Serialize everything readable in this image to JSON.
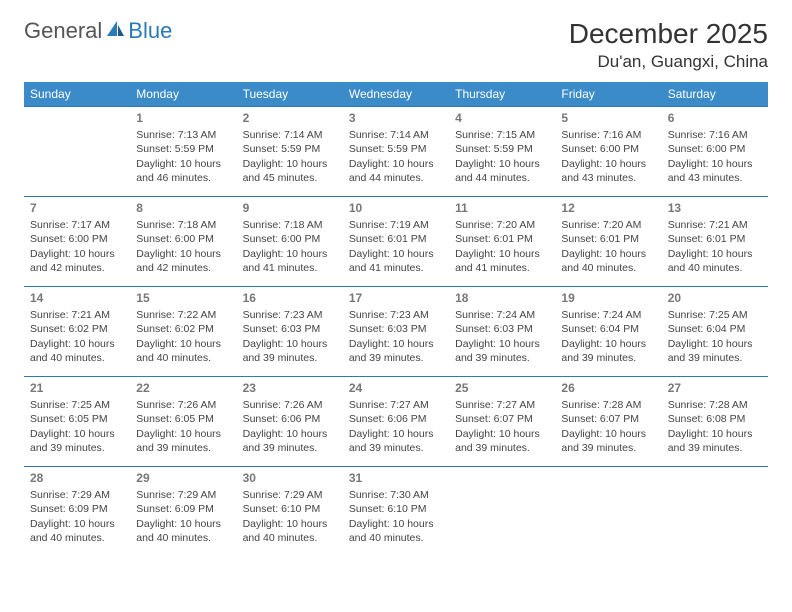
{
  "brand": {
    "part1": "General",
    "part2": "Blue"
  },
  "title": "December 2025",
  "location": "Du'an, Guangxi, China",
  "colors": {
    "header_bg": "#3b8bc9",
    "row_border": "#2a7ab8",
    "text": "#333333",
    "muted": "#777777"
  },
  "weekdays": [
    "Sunday",
    "Monday",
    "Tuesday",
    "Wednesday",
    "Thursday",
    "Friday",
    "Saturday"
  ],
  "weeks": [
    [
      null,
      {
        "n": "1",
        "sr": "Sunrise: 7:13 AM",
        "ss": "Sunset: 5:59 PM",
        "dl1": "Daylight: 10 hours",
        "dl2": "and 46 minutes."
      },
      {
        "n": "2",
        "sr": "Sunrise: 7:14 AM",
        "ss": "Sunset: 5:59 PM",
        "dl1": "Daylight: 10 hours",
        "dl2": "and 45 minutes."
      },
      {
        "n": "3",
        "sr": "Sunrise: 7:14 AM",
        "ss": "Sunset: 5:59 PM",
        "dl1": "Daylight: 10 hours",
        "dl2": "and 44 minutes."
      },
      {
        "n": "4",
        "sr": "Sunrise: 7:15 AM",
        "ss": "Sunset: 5:59 PM",
        "dl1": "Daylight: 10 hours",
        "dl2": "and 44 minutes."
      },
      {
        "n": "5",
        "sr": "Sunrise: 7:16 AM",
        "ss": "Sunset: 6:00 PM",
        "dl1": "Daylight: 10 hours",
        "dl2": "and 43 minutes."
      },
      {
        "n": "6",
        "sr": "Sunrise: 7:16 AM",
        "ss": "Sunset: 6:00 PM",
        "dl1": "Daylight: 10 hours",
        "dl2": "and 43 minutes."
      }
    ],
    [
      {
        "n": "7",
        "sr": "Sunrise: 7:17 AM",
        "ss": "Sunset: 6:00 PM",
        "dl1": "Daylight: 10 hours",
        "dl2": "and 42 minutes."
      },
      {
        "n": "8",
        "sr": "Sunrise: 7:18 AM",
        "ss": "Sunset: 6:00 PM",
        "dl1": "Daylight: 10 hours",
        "dl2": "and 42 minutes."
      },
      {
        "n": "9",
        "sr": "Sunrise: 7:18 AM",
        "ss": "Sunset: 6:00 PM",
        "dl1": "Daylight: 10 hours",
        "dl2": "and 41 minutes."
      },
      {
        "n": "10",
        "sr": "Sunrise: 7:19 AM",
        "ss": "Sunset: 6:01 PM",
        "dl1": "Daylight: 10 hours",
        "dl2": "and 41 minutes."
      },
      {
        "n": "11",
        "sr": "Sunrise: 7:20 AM",
        "ss": "Sunset: 6:01 PM",
        "dl1": "Daylight: 10 hours",
        "dl2": "and 41 minutes."
      },
      {
        "n": "12",
        "sr": "Sunrise: 7:20 AM",
        "ss": "Sunset: 6:01 PM",
        "dl1": "Daylight: 10 hours",
        "dl2": "and 40 minutes."
      },
      {
        "n": "13",
        "sr": "Sunrise: 7:21 AM",
        "ss": "Sunset: 6:01 PM",
        "dl1": "Daylight: 10 hours",
        "dl2": "and 40 minutes."
      }
    ],
    [
      {
        "n": "14",
        "sr": "Sunrise: 7:21 AM",
        "ss": "Sunset: 6:02 PM",
        "dl1": "Daylight: 10 hours",
        "dl2": "and 40 minutes."
      },
      {
        "n": "15",
        "sr": "Sunrise: 7:22 AM",
        "ss": "Sunset: 6:02 PM",
        "dl1": "Daylight: 10 hours",
        "dl2": "and 40 minutes."
      },
      {
        "n": "16",
        "sr": "Sunrise: 7:23 AM",
        "ss": "Sunset: 6:03 PM",
        "dl1": "Daylight: 10 hours",
        "dl2": "and 39 minutes."
      },
      {
        "n": "17",
        "sr": "Sunrise: 7:23 AM",
        "ss": "Sunset: 6:03 PM",
        "dl1": "Daylight: 10 hours",
        "dl2": "and 39 minutes."
      },
      {
        "n": "18",
        "sr": "Sunrise: 7:24 AM",
        "ss": "Sunset: 6:03 PM",
        "dl1": "Daylight: 10 hours",
        "dl2": "and 39 minutes."
      },
      {
        "n": "19",
        "sr": "Sunrise: 7:24 AM",
        "ss": "Sunset: 6:04 PM",
        "dl1": "Daylight: 10 hours",
        "dl2": "and 39 minutes."
      },
      {
        "n": "20",
        "sr": "Sunrise: 7:25 AM",
        "ss": "Sunset: 6:04 PM",
        "dl1": "Daylight: 10 hours",
        "dl2": "and 39 minutes."
      }
    ],
    [
      {
        "n": "21",
        "sr": "Sunrise: 7:25 AM",
        "ss": "Sunset: 6:05 PM",
        "dl1": "Daylight: 10 hours",
        "dl2": "and 39 minutes."
      },
      {
        "n": "22",
        "sr": "Sunrise: 7:26 AM",
        "ss": "Sunset: 6:05 PM",
        "dl1": "Daylight: 10 hours",
        "dl2": "and 39 minutes."
      },
      {
        "n": "23",
        "sr": "Sunrise: 7:26 AM",
        "ss": "Sunset: 6:06 PM",
        "dl1": "Daylight: 10 hours",
        "dl2": "and 39 minutes."
      },
      {
        "n": "24",
        "sr": "Sunrise: 7:27 AM",
        "ss": "Sunset: 6:06 PM",
        "dl1": "Daylight: 10 hours",
        "dl2": "and 39 minutes."
      },
      {
        "n": "25",
        "sr": "Sunrise: 7:27 AM",
        "ss": "Sunset: 6:07 PM",
        "dl1": "Daylight: 10 hours",
        "dl2": "and 39 minutes."
      },
      {
        "n": "26",
        "sr": "Sunrise: 7:28 AM",
        "ss": "Sunset: 6:07 PM",
        "dl1": "Daylight: 10 hours",
        "dl2": "and 39 minutes."
      },
      {
        "n": "27",
        "sr": "Sunrise: 7:28 AM",
        "ss": "Sunset: 6:08 PM",
        "dl1": "Daylight: 10 hours",
        "dl2": "and 39 minutes."
      }
    ],
    [
      {
        "n": "28",
        "sr": "Sunrise: 7:29 AM",
        "ss": "Sunset: 6:09 PM",
        "dl1": "Daylight: 10 hours",
        "dl2": "and 40 minutes."
      },
      {
        "n": "29",
        "sr": "Sunrise: 7:29 AM",
        "ss": "Sunset: 6:09 PM",
        "dl1": "Daylight: 10 hours",
        "dl2": "and 40 minutes."
      },
      {
        "n": "30",
        "sr": "Sunrise: 7:29 AM",
        "ss": "Sunset: 6:10 PM",
        "dl1": "Daylight: 10 hours",
        "dl2": "and 40 minutes."
      },
      {
        "n": "31",
        "sr": "Sunrise: 7:30 AM",
        "ss": "Sunset: 6:10 PM",
        "dl1": "Daylight: 10 hours",
        "dl2": "and 40 minutes."
      },
      null,
      null,
      null
    ]
  ]
}
